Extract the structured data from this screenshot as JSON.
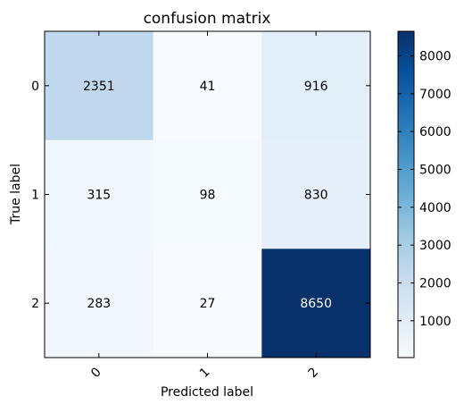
{
  "chart_data": {
    "type": "heatmap",
    "title": "confusion matrix",
    "xlabel": "Predicted label",
    "ylabel": "True label",
    "x_categories": [
      "0",
      "1",
      "2"
    ],
    "y_categories": [
      "0",
      "1",
      "2"
    ],
    "values": [
      [
        2351,
        41,
        916
      ],
      [
        315,
        98,
        830
      ],
      [
        283,
        27,
        8650
      ]
    ],
    "colormap": "Blues",
    "colorbar": {
      "min": 27,
      "max": 8650,
      "ticks": [
        1000,
        2000,
        3000,
        4000,
        5000,
        6000,
        7000,
        8000
      ]
    },
    "text_colors": {
      "light": "#ffffff",
      "dark": "#000000"
    }
  }
}
